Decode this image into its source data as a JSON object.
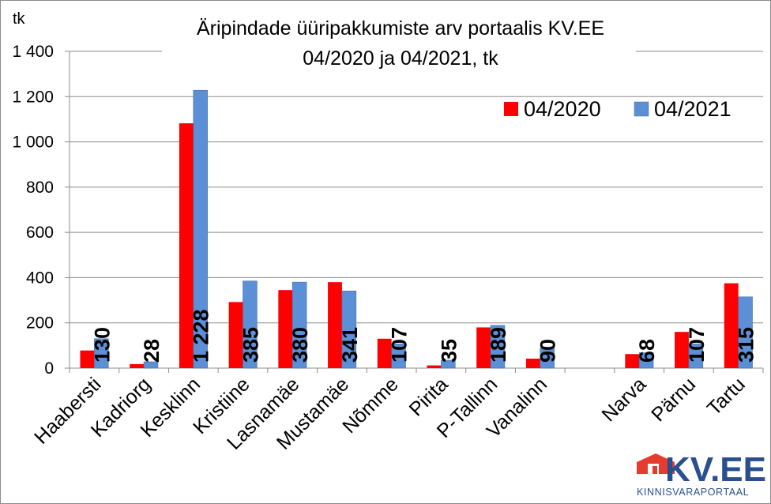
{
  "chart_data": {
    "type": "bar",
    "title": "Äripindade üüripakkumiste arv portaalis KV.EE",
    "subtitle": "04/2020 ja 04/2021, tk",
    "ylabel": "tk",
    "ylim": [
      0,
      1400
    ],
    "yticks": [
      0,
      200,
      400,
      600,
      800,
      1000,
      1200,
      1400
    ],
    "ytick_labels": [
      "0",
      "200",
      "400",
      "600",
      "800",
      "1 000",
      "1 200",
      "1 400"
    ],
    "grid": true,
    "legend_position": "top-right",
    "categories": [
      "Haabersti",
      "Kadriorg",
      "Kesklinn",
      "Kristiine",
      "Lasnamäe",
      "Mustamäe",
      "Nõmme",
      "Pirita",
      "P-Tallinn",
      "Vanalinn",
      "",
      "Narva",
      "Pärnu",
      "Tartu"
    ],
    "series": [
      {
        "name": "04/2020",
        "color": "#ff0000",
        "values": [
          78,
          18,
          1082,
          292,
          345,
          380,
          130,
          12,
          180,
          42,
          null,
          62,
          160,
          375
        ]
      },
      {
        "name": "04/2021",
        "color": "#5b8fd6",
        "values": [
          130,
          28,
          1228,
          385,
          380,
          341,
          107,
          35,
          189,
          90,
          null,
          68,
          107,
          315
        ],
        "data_labels": [
          "130",
          "28",
          "1 228",
          "385",
          "380",
          "341",
          "107",
          "35",
          "189",
          "90",
          "",
          "68",
          "107",
          "315"
        ]
      }
    ]
  },
  "logo": {
    "name": "KV.EE",
    "tagline": "KINNISVARAPORTAAL",
    "icon": "house-logo-icon",
    "colors": {
      "house": "#e63c2f",
      "text": "#2a4f8f"
    }
  }
}
